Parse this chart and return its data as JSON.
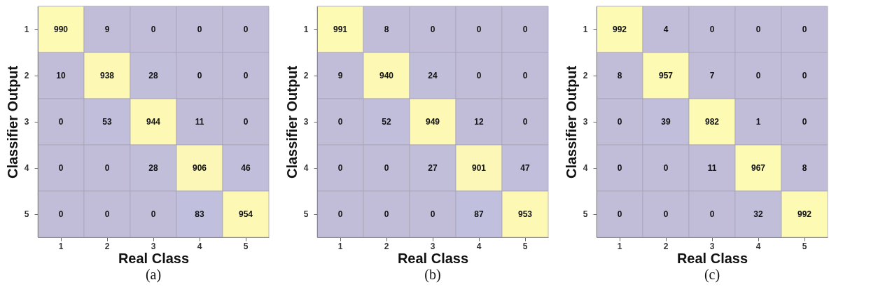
{
  "chart_data": [
    {
      "type": "heatmap",
      "title": "(a)",
      "xlabel": "Real Class",
      "ylabel": "Classifier Output",
      "categories": [
        "1",
        "2",
        "3",
        "4",
        "5"
      ],
      "y_categories": [
        "1",
        "2",
        "3",
        "4",
        "5"
      ],
      "data_labels": true,
      "grid": false,
      "cells": [
        [
          990,
          9,
          0,
          0,
          0
        ],
        [
          10,
          938,
          28,
          0,
          0
        ],
        [
          0,
          53,
          944,
          11,
          0
        ],
        [
          0,
          0,
          28,
          906,
          46
        ],
        [
          0,
          0,
          0,
          83,
          954
        ]
      ]
    },
    {
      "type": "heatmap",
      "title": "(b)",
      "xlabel": "Real Class",
      "ylabel": "Classifier Output",
      "categories": [
        "1",
        "2",
        "3",
        "4",
        "5"
      ],
      "y_categories": [
        "1",
        "2",
        "3",
        "4",
        "5"
      ],
      "data_labels": true,
      "grid": false,
      "cells": [
        [
          991,
          8,
          0,
          0,
          0
        ],
        [
          9,
          940,
          24,
          0,
          0
        ],
        [
          0,
          52,
          949,
          12,
          0
        ],
        [
          0,
          0,
          27,
          901,
          47
        ],
        [
          0,
          0,
          0,
          87,
          953
        ]
      ]
    },
    {
      "type": "heatmap",
      "title": "(c)",
      "xlabel": "Real Class",
      "ylabel": "Classifier Output",
      "categories": [
        "1",
        "2",
        "3",
        "4",
        "5"
      ],
      "y_categories": [
        "1",
        "2",
        "3",
        "4",
        "5"
      ],
      "data_labels": true,
      "grid": false,
      "cells": [
        [
          992,
          4,
          0,
          0,
          0
        ],
        [
          8,
          957,
          7,
          0,
          0
        ],
        [
          0,
          39,
          982,
          1,
          0
        ],
        [
          0,
          0,
          11,
          967,
          8
        ],
        [
          0,
          0,
          0,
          32,
          992
        ]
      ]
    }
  ]
}
